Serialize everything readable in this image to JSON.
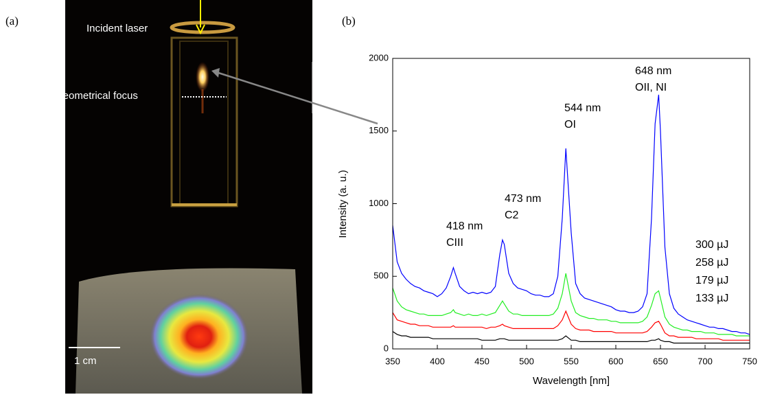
{
  "panel_a": {
    "label": "(a)",
    "annotations": [
      "Incident laser",
      "Geometrical focus"
    ],
    "scale_bar": "1 cm"
  },
  "chart_data": {
    "type": "line",
    "panel_label": "(b)",
    "x_label": "Wavelength [nm]",
    "y_label": "Intensity (a. u.)",
    "x": [
      350,
      355,
      360,
      365,
      370,
      375,
      380,
      385,
      390,
      395,
      400,
      405,
      410,
      415,
      418,
      420,
      425,
      430,
      435,
      440,
      445,
      450,
      455,
      460,
      465,
      470,
      473,
      475,
      480,
      485,
      490,
      495,
      500,
      505,
      510,
      515,
      520,
      525,
      530,
      535,
      540,
      544,
      550,
      555,
      560,
      565,
      570,
      575,
      580,
      585,
      590,
      595,
      600,
      605,
      610,
      615,
      620,
      625,
      630,
      635,
      640,
      644,
      648,
      650,
      655,
      660,
      665,
      670,
      675,
      680,
      685,
      690,
      695,
      700,
      705,
      710,
      715,
      720,
      725,
      730,
      735,
      740,
      745,
      750
    ],
    "series": [
      {
        "name": "300 µJ",
        "color": "#0000ff",
        "values": [
          850,
          600,
          520,
          480,
          450,
          430,
          420,
          400,
          390,
          380,
          360,
          380,
          420,
          500,
          560,
          520,
          430,
          400,
          380,
          390,
          380,
          390,
          380,
          390,
          430,
          650,
          750,
          720,
          520,
          450,
          420,
          410,
          400,
          380,
          370,
          370,
          360,
          360,
          380,
          500,
          900,
          1380,
          800,
          450,
          380,
          350,
          340,
          330,
          320,
          310,
          300,
          290,
          270,
          260,
          260,
          250,
          250,
          260,
          290,
          380,
          900,
          1550,
          1750,
          1500,
          700,
          380,
          280,
          240,
          220,
          200,
          190,
          180,
          170,
          160,
          150,
          150,
          140,
          140,
          130,
          120,
          120,
          110,
          110,
          100
        ]
      },
      {
        "name": "258 µJ",
        "color": "#22ee22",
        "values": [
          420,
          330,
          290,
          270,
          260,
          250,
          240,
          240,
          230,
          230,
          230,
          230,
          240,
          250,
          270,
          250,
          240,
          230,
          240,
          230,
          230,
          240,
          230,
          240,
          250,
          300,
          330,
          310,
          260,
          240,
          240,
          230,
          230,
          230,
          230,
          230,
          230,
          230,
          240,
          280,
          380,
          520,
          330,
          250,
          230,
          220,
          210,
          210,
          200,
          200,
          200,
          190,
          190,
          180,
          180,
          180,
          180,
          180,
          190,
          220,
          300,
          380,
          400,
          350,
          220,
          170,
          150,
          140,
          130,
          130,
          120,
          120,
          120,
          110,
          110,
          110,
          100,
          100,
          100,
          100,
          90,
          90,
          90,
          90
        ]
      },
      {
        "name": "179 µJ",
        "color": "#ff0000",
        "values": [
          250,
          200,
          190,
          180,
          170,
          170,
          160,
          160,
          160,
          150,
          150,
          150,
          150,
          150,
          160,
          150,
          150,
          150,
          150,
          150,
          150,
          150,
          140,
          150,
          150,
          160,
          170,
          160,
          150,
          140,
          140,
          140,
          140,
          140,
          140,
          140,
          140,
          140,
          140,
          160,
          200,
          260,
          170,
          140,
          130,
          130,
          130,
          120,
          120,
          120,
          120,
          120,
          110,
          110,
          110,
          110,
          110,
          110,
          110,
          120,
          150,
          180,
          190,
          170,
          110,
          90,
          90,
          80,
          80,
          80,
          80,
          70,
          70,
          70,
          70,
          70,
          70,
          60,
          60,
          60,
          60,
          60,
          60,
          60
        ]
      },
      {
        "name": "133 µJ",
        "color": "#000000",
        "values": [
          120,
          100,
          90,
          90,
          80,
          80,
          80,
          80,
          80,
          70,
          70,
          70,
          70,
          70,
          70,
          70,
          70,
          70,
          70,
          70,
          70,
          60,
          60,
          60,
          60,
          70,
          70,
          70,
          60,
          60,
          60,
          60,
          60,
          60,
          60,
          60,
          60,
          60,
          60,
          60,
          70,
          90,
          60,
          60,
          50,
          50,
          50,
          50,
          50,
          50,
          50,
          50,
          50,
          50,
          50,
          50,
          50,
          50,
          50,
          50,
          60,
          60,
          70,
          60,
          50,
          50,
          40,
          40,
          40,
          40,
          40,
          40,
          40,
          40,
          40,
          40,
          40,
          40,
          40,
          40,
          40,
          40,
          40,
          40
        ]
      }
    ],
    "annotations": [
      [
        "418 nm",
        "CIII"
      ],
      [
        "473 nm",
        "C2"
      ],
      [
        "544 nm",
        "OI"
      ],
      [
        "648 nm",
        "OII, NI"
      ]
    ],
    "xlim": [
      350,
      750
    ],
    "xticks": [
      350,
      400,
      450,
      500,
      550,
      600,
      650,
      700,
      750
    ],
    "ylim": [
      0,
      2000
    ],
    "yticks": [
      0,
      500,
      1000,
      1500,
      2000
    ]
  }
}
